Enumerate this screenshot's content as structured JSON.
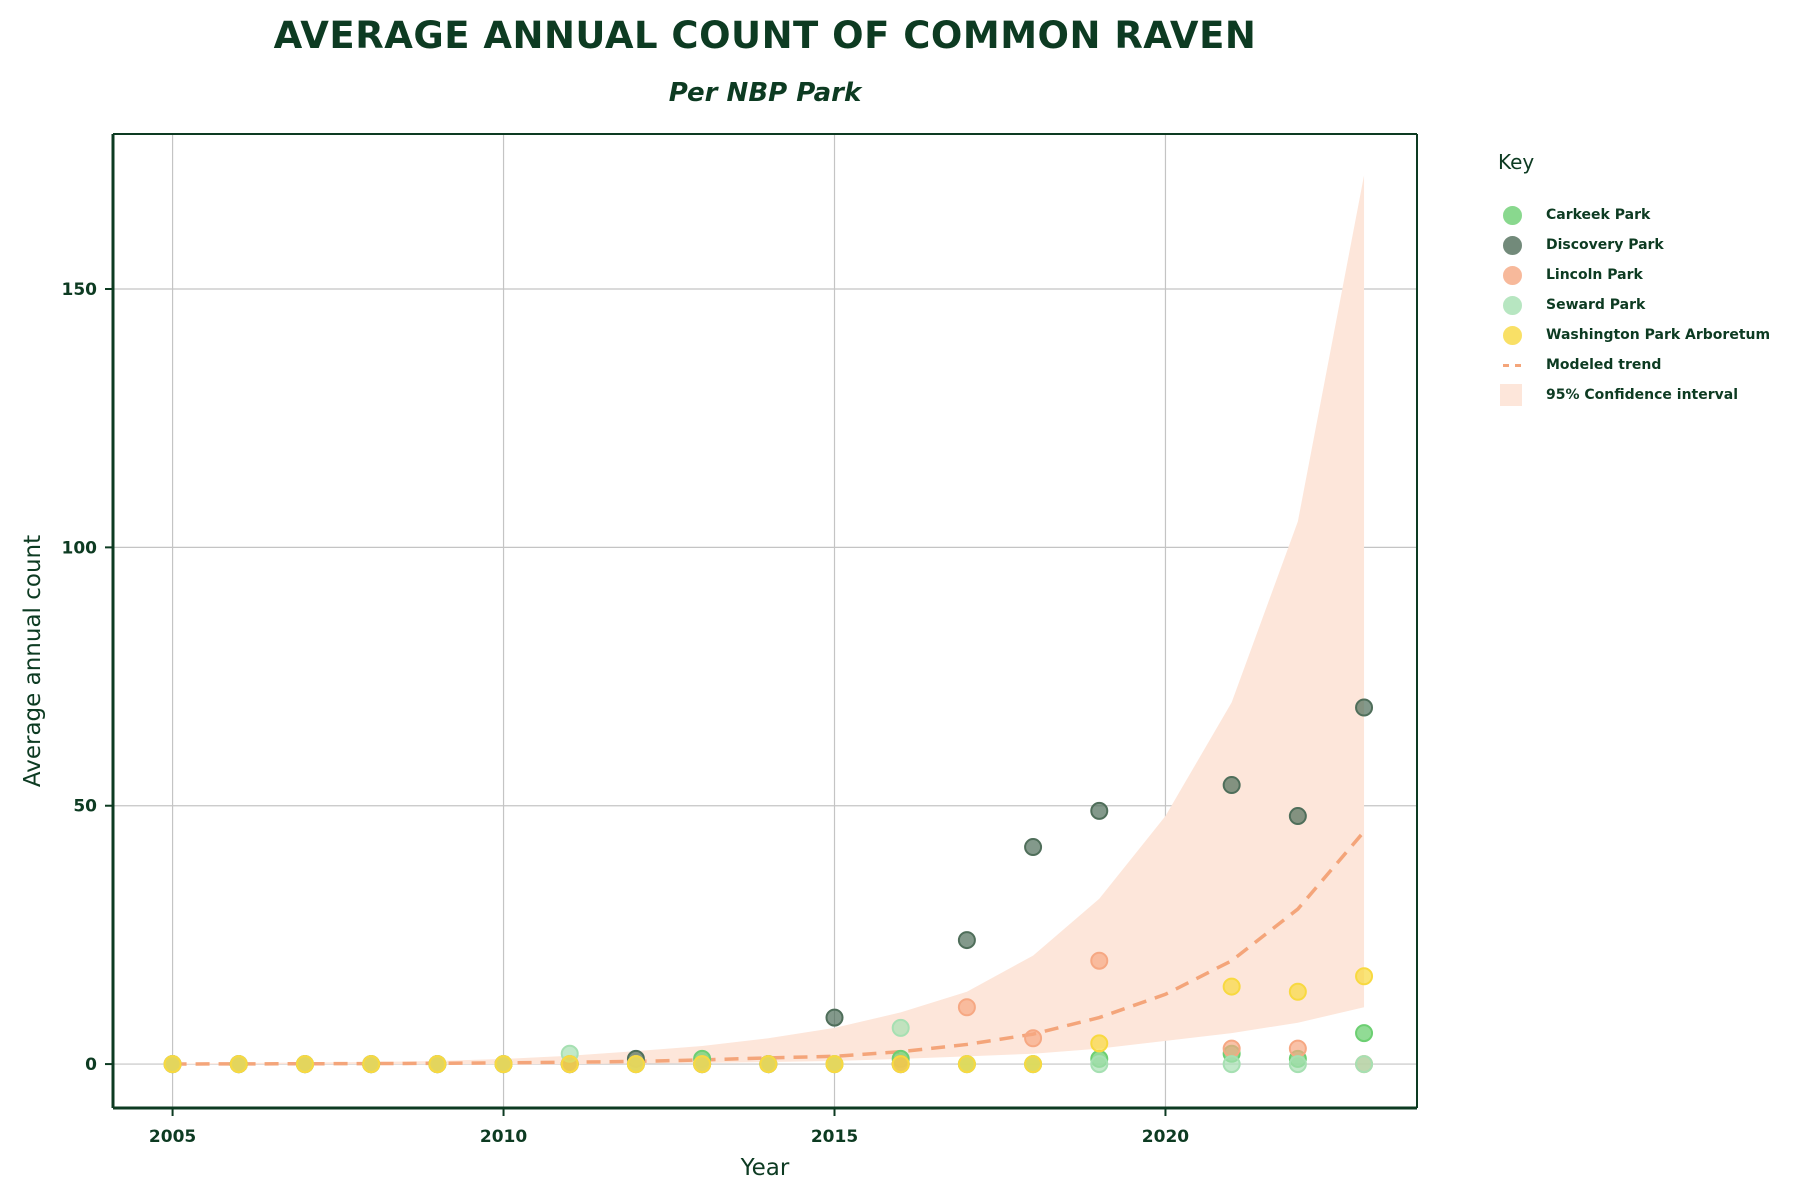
{
  "title": "AVERAGE ANNUAL COUNT OF COMMON RAVEN",
  "subtitle": "Per NBP Park",
  "legend": {
    "title": "Key",
    "items": [
      {
        "label": "Carkeek Park",
        "kind": "dot",
        "color": "#6ccf72"
      },
      {
        "label": "Discovery Park",
        "kind": "dot",
        "color": "#4f6e5a"
      },
      {
        "label": "Lincoln Park",
        "kind": "dot",
        "color": "#f6a883"
      },
      {
        "label": "Seward Park",
        "kind": "dot",
        "color": "#a6e0b2"
      },
      {
        "label": "Washington Park Arboretum",
        "kind": "dot",
        "color": "#f8d940"
      },
      {
        "label": "Modeled trend",
        "kind": "line",
        "color": "#f4a57a"
      },
      {
        "label": "95% Confidence interval",
        "kind": "band",
        "color": "#fde6da"
      }
    ]
  },
  "chart_data": {
    "type": "scatter",
    "title": "AVERAGE ANNUAL COUNT OF COMMON RAVEN",
    "subtitle": "Per NBP Park",
    "xlabel": "Year",
    "ylabel": "Average annual count",
    "xlim": [
      2004.1,
      2023.8
    ],
    "ylim": [
      -8.5,
      180
    ],
    "xticks": [
      2005,
      2010,
      2015,
      2020
    ],
    "yticks": [
      0,
      50,
      100,
      150
    ],
    "grid": true,
    "legend_position": "right",
    "series": [
      {
        "name": "Carkeek Park",
        "color": "#6ccf72",
        "opacity": 0.75,
        "x": [
          2005,
          2006,
          2007,
          2008,
          2009,
          2010,
          2011,
          2012,
          2013,
          2014,
          2015,
          2016,
          2017,
          2018,
          2019,
          2021,
          2022,
          2023
        ],
        "y": [
          0,
          0,
          0,
          0,
          0,
          0,
          0,
          0,
          1,
          0,
          0,
          1,
          0,
          0,
          1,
          2,
          1,
          6
        ]
      },
      {
        "name": "Discovery Park",
        "color": "#4f6e5a",
        "opacity": 0.7,
        "x": [
          2005,
          2006,
          2007,
          2008,
          2009,
          2010,
          2011,
          2012,
          2013,
          2014,
          2015,
          2016,
          2017,
          2018,
          2019,
          2021,
          2022,
          2023
        ],
        "y": [
          0,
          0,
          0,
          0,
          0,
          0,
          0,
          1,
          0,
          0,
          9,
          0,
          24,
          42,
          49,
          54,
          48,
          69
        ]
      },
      {
        "name": "Lincoln Park",
        "color": "#f6a883",
        "opacity": 0.7,
        "x": [
          2005,
          2006,
          2007,
          2008,
          2009,
          2010,
          2011,
          2012,
          2013,
          2014,
          2015,
          2016,
          2017,
          2018,
          2019,
          2021,
          2022,
          2023
        ],
        "y": [
          0,
          0,
          0,
          0,
          0,
          0,
          0,
          0,
          0,
          0,
          0,
          0,
          11,
          5,
          20,
          3,
          3,
          0
        ]
      },
      {
        "name": "Seward Park",
        "color": "#a6e0b2",
        "opacity": 0.7,
        "x": [
          2005,
          2006,
          2007,
          2008,
          2009,
          2010,
          2011,
          2012,
          2013,
          2014,
          2015,
          2016,
          2017,
          2018,
          2019,
          2021,
          2022,
          2023
        ],
        "y": [
          0,
          0,
          0,
          0,
          0,
          0,
          2,
          0,
          0,
          0,
          0,
          7,
          0,
          0,
          0,
          0,
          0,
          0
        ]
      },
      {
        "name": "Washington Park Arboretum",
        "color": "#f8d940",
        "opacity": 0.7,
        "x": [
          2005,
          2006,
          2007,
          2008,
          2009,
          2010,
          2011,
          2012,
          2013,
          2014,
          2015,
          2016,
          2017,
          2018,
          2019,
          2021,
          2022,
          2023
        ],
        "y": [
          0,
          0,
          0,
          0,
          0,
          0,
          0,
          0,
          0,
          0,
          0,
          0,
          0,
          0,
          4,
          15,
          14,
          17
        ]
      }
    ],
    "trend": {
      "name": "Modeled trend",
      "color": "#f4a57a",
      "x": [
        2005,
        2006,
        2007,
        2008,
        2009,
        2010,
        2011,
        2012,
        2013,
        2014,
        2015,
        2016,
        2017,
        2018,
        2019,
        2020,
        2021,
        2022,
        2023
      ],
      "y": [
        0.02,
        0.04,
        0.06,
        0.1,
        0.15,
        0.23,
        0.35,
        0.52,
        0.8,
        1.2,
        1.5,
        2.4,
        3.8,
        5.8,
        9.0,
        13.5,
        20,
        30,
        45
      ]
    },
    "confidence_band": {
      "name": "95% Confidence interval",
      "color": "#fde6da",
      "x": [
        2005,
        2006,
        2007,
        2008,
        2009,
        2010,
        2011,
        2012,
        2013,
        2014,
        2015,
        2016,
        2017,
        2018,
        2019,
        2020,
        2021,
        2022,
        2023
      ],
      "lower": [
        0,
        0,
        0,
        0,
        0,
        0,
        0,
        0.1,
        0.2,
        0.4,
        0.6,
        1,
        1.5,
        2,
        3,
        4.5,
        6,
        8,
        11
      ],
      "upper": [
        0.1,
        0.2,
        0.3,
        0.4,
        0.6,
        1,
        1.6,
        2.5,
        3.5,
        5,
        7,
        10,
        14,
        21,
        32,
        48,
        70,
        105,
        172
      ]
    }
  }
}
